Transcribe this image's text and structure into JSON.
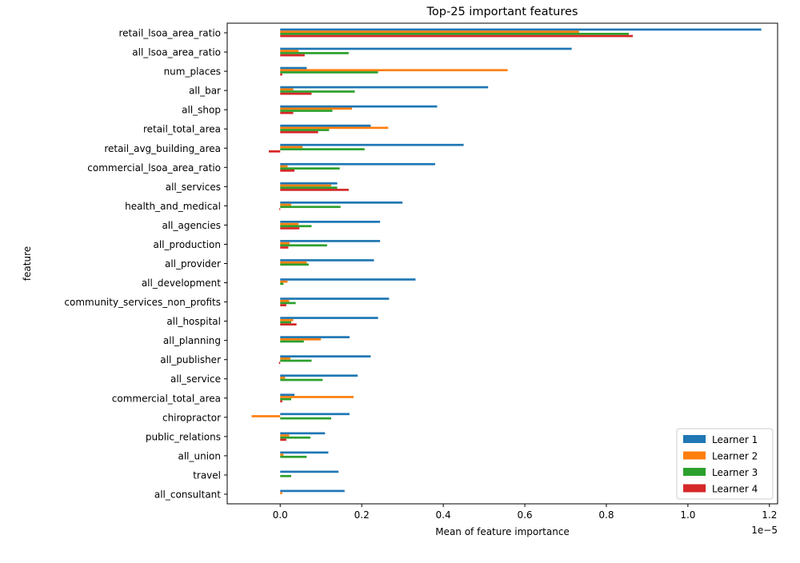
{
  "chart_data": {
    "type": "bar",
    "orientation": "horizontal",
    "title": "Top-25 important features",
    "xlabel": "Mean of feature importance",
    "ylabel": "feature",
    "x_offset_label": "1e−5",
    "x_scale": 1e-05,
    "xlim": [
      -0.13,
      1.22
    ],
    "xticks": [
      0.0,
      0.2,
      0.4,
      0.6,
      0.8,
      1.0,
      1.2
    ],
    "xtick_labels": [
      "0.0",
      "0.2",
      "0.4",
      "0.6",
      "0.8",
      "1.0",
      "1.2"
    ],
    "grid": false,
    "legend_position": "lower-right",
    "categories": [
      "retail_lsoa_area_ratio",
      "all_lsoa_area_ratio",
      "num_places",
      "all_bar",
      "all_shop",
      "retail_total_area",
      "retail_avg_building_area",
      "commercial_lsoa_area_ratio",
      "all_services",
      "health_and_medical",
      "all_agencies",
      "all_production",
      "all_provider",
      "all_development",
      "community_services_non_profits",
      "all_hospital",
      "all_planning",
      "all_publisher",
      "all_service",
      "commercial_total_area",
      "chiropractor",
      "public_relations",
      "all_union",
      "travel",
      "all_consultant"
    ],
    "series": [
      {
        "name": "Learner 1",
        "color": "#1f77b4",
        "values": [
          1.18,
          0.715,
          0.065,
          0.51,
          0.385,
          0.222,
          0.45,
          0.38,
          0.14,
          0.3,
          0.245,
          0.245,
          0.23,
          0.332,
          0.267,
          0.24,
          0.17,
          0.222,
          0.19,
          0.035,
          0.17,
          0.11,
          0.118,
          0.143,
          0.158
        ]
      },
      {
        "name": "Learner 2",
        "color": "#ff7f0e",
        "values": [
          0.733,
          0.045,
          0.558,
          0.032,
          0.176,
          0.265,
          0.055,
          0.018,
          0.125,
          0.027,
          0.045,
          0.023,
          0.065,
          0.018,
          0.022,
          0.032,
          0.1,
          0.025,
          0.012,
          0.18,
          -0.07,
          0.022,
          0.008,
          0.0,
          0.005
        ]
      },
      {
        "name": "Learner 3",
        "color": "#2ca02c",
        "values": [
          0.855,
          0.168,
          0.24,
          0.183,
          0.128,
          0.12,
          0.207,
          0.146,
          0.14,
          0.148,
          0.077,
          0.115,
          0.07,
          0.008,
          0.038,
          0.027,
          0.058,
          0.077,
          0.104,
          0.027,
          0.125,
          0.074,
          0.065,
          0.027,
          0.0
        ]
      },
      {
        "name": "Learner 4",
        "color": "#d62728",
        "values": [
          0.865,
          0.06,
          0.005,
          0.077,
          0.032,
          0.093,
          -0.028,
          0.035,
          0.168,
          -0.002,
          0.047,
          0.02,
          0.0,
          0.0,
          0.015,
          0.04,
          0.0,
          -0.003,
          0.0,
          0.005,
          0.0,
          0.015,
          0.0,
          0.0,
          0.0
        ]
      }
    ]
  }
}
